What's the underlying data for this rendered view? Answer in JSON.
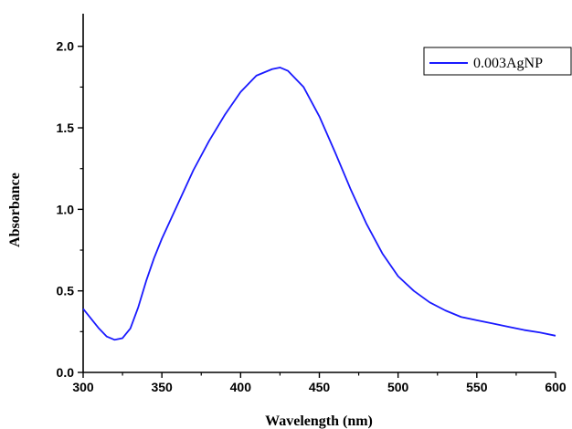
{
  "chart_data": {
    "type": "line",
    "title": "",
    "xlabel": "Wavelength (nm)",
    "ylabel": "Absorbance",
    "xlim": [
      300,
      600
    ],
    "ylim": [
      0.0,
      2.2
    ],
    "xticks": [
      300,
      350,
      400,
      450,
      500,
      550,
      600
    ],
    "xtick_labels": [
      "300",
      "350",
      "400",
      "450",
      "500",
      "550",
      "600"
    ],
    "yticks": [
      0.0,
      0.5,
      1.0,
      1.5,
      2.0
    ],
    "ytick_labels": [
      "0.0",
      "0.5",
      "1.0",
      "1.5",
      "2.0"
    ],
    "grid": false,
    "legend_position": "top-right",
    "series": [
      {
        "name": "0.003AgNP",
        "color": "#1a1aff",
        "x": [
          300,
          305,
          310,
          315,
          320,
          325,
          330,
          335,
          340,
          345,
          350,
          360,
          370,
          380,
          390,
          400,
          410,
          420,
          425,
          430,
          440,
          450,
          460,
          470,
          480,
          490,
          500,
          510,
          520,
          530,
          540,
          550,
          560,
          570,
          580,
          590,
          600
        ],
        "y": [
          0.39,
          0.33,
          0.27,
          0.22,
          0.2,
          0.21,
          0.27,
          0.4,
          0.56,
          0.7,
          0.82,
          1.03,
          1.24,
          1.42,
          1.58,
          1.72,
          1.82,
          1.86,
          1.87,
          1.85,
          1.75,
          1.57,
          1.35,
          1.12,
          0.91,
          0.73,
          0.59,
          0.5,
          0.43,
          0.38,
          0.34,
          0.32,
          0.3,
          0.28,
          0.26,
          0.245,
          0.225
        ]
      }
    ]
  }
}
